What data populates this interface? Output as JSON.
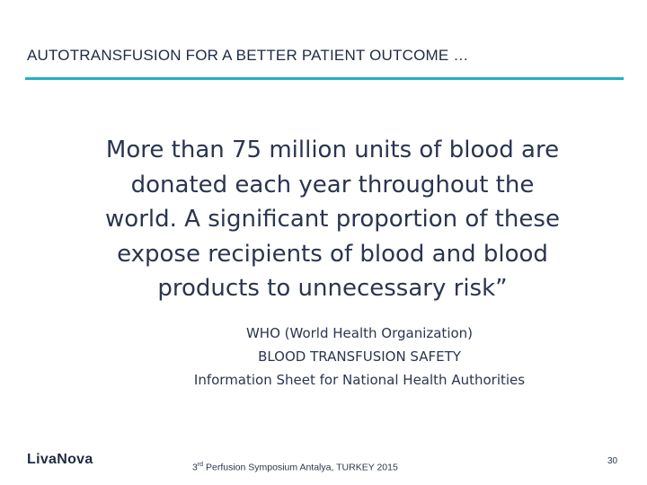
{
  "slide": {
    "title": "AUTOTRANSFUSION FOR A BETTER PATIENT OUTCOME …",
    "quote_lines": [
      "More than 75 million units of blood are",
      "donated each year throughout the",
      "world. A significant proportion of these",
      "expose recipients of blood and blood",
      "products to unnecessary risk”"
    ],
    "source_lines": [
      "WHO (World Health Organization)",
      "BLOOD TRANSFUSION SAFETY",
      "Information Sheet for National Health Authorities"
    ]
  },
  "footer": {
    "logo_text": "LivaNova",
    "event_ordinal": "3",
    "event_ordinal_suffix": "rd",
    "event_text": "Perfusion Symposium Antalya,  TURKEY 2015",
    "page_number": "30"
  },
  "colors": {
    "accent_rule": "#1fb0c4",
    "text": "#2b3550"
  }
}
